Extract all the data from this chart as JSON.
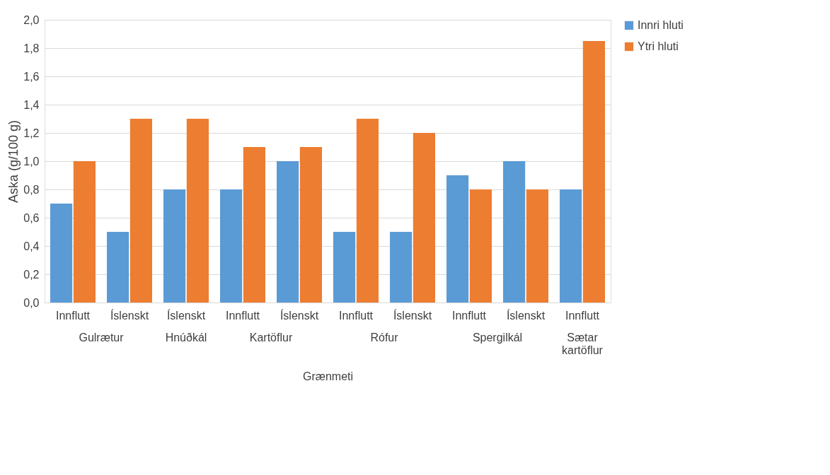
{
  "chart_data": {
    "type": "bar",
    "xlabel": "Grænmeti",
    "ylabel": "Aska (g/100 g)",
    "categories": [
      "Innflutt",
      "Íslenskt",
      "Íslenskt",
      "Innflutt",
      "Íslenskt",
      "Innflutt",
      "Íslenskt",
      "Innflutt",
      "Íslenskt",
      "Innflutt"
    ],
    "series": [
      {
        "name": "Innri hluti",
        "color": "#5b9bd5",
        "values": [
          0.7,
          0.5,
          0.8,
          0.8,
          1.0,
          0.5,
          0.5,
          0.9,
          1.0,
          0.8
        ]
      },
      {
        "name": "Ytri hluti",
        "color": "#ed7d31",
        "values": [
          1.0,
          1.3,
          1.3,
          1.1,
          1.1,
          1.3,
          1.2,
          0.8,
          0.8,
          1.85
        ]
      }
    ],
    "annotations": [
      "Gulrætur",
      "Hnúðkál",
      "Kartöflur",
      "Rófur",
      "Spergilkál",
      "Sætar kartöflur"
    ],
    "ylim": [
      0,
      2
    ],
    "yticks": [
      {
        "value": 0,
        "label": "0,0"
      },
      {
        "value": 0.2,
        "label": "0,2"
      },
      {
        "value": 0.4,
        "label": "0,4"
      },
      {
        "value": 0.6,
        "label": "0,6"
      },
      {
        "value": 0.8,
        "label": "0,8"
      },
      {
        "value": 1.0,
        "label": "1,0"
      },
      {
        "value": 1.2,
        "label": "1,2"
      },
      {
        "value": 1.4,
        "label": "1,4"
      },
      {
        "value": 1.6,
        "label": "1,6"
      },
      {
        "value": 1.8,
        "label": "1,8"
      },
      {
        "value": 2.0,
        "label": "2,0"
      }
    ],
    "grid": "y",
    "legend": "right"
  }
}
